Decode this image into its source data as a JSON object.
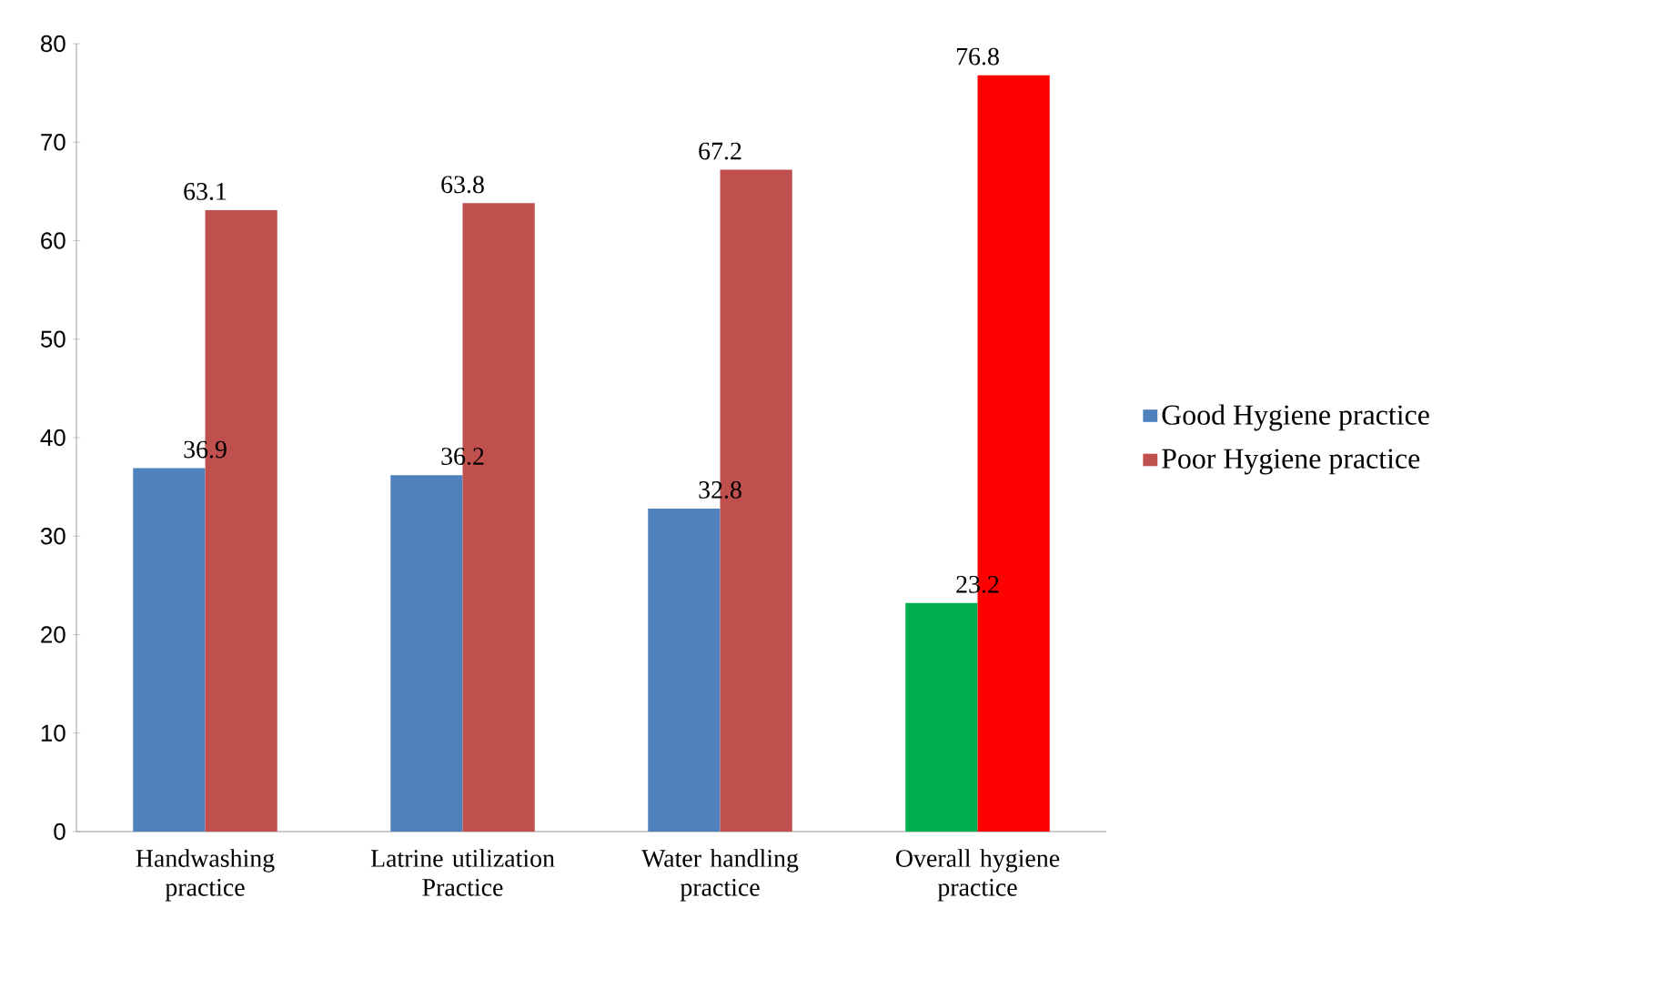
{
  "chart_data": {
    "type": "bar",
    "categories": [
      "Handwashing practice",
      "Latrine utilization Practice",
      "Water handling practice",
      "Overall hygiene practice"
    ],
    "series": [
      {
        "name": "Good Hygiene practice",
        "color": "#4f81bd",
        "colors": [
          "#4f81bd",
          "#4f81bd",
          "#4f81bd",
          "#00b050"
        ],
        "values": [
          36.9,
          36.2,
          32.8,
          23.2
        ]
      },
      {
        "name": "Poor Hygiene practice",
        "color": "#c0504d",
        "colors": [
          "#c0504d",
          "#c0504d",
          "#c0504d",
          "#ff0000"
        ],
        "values": [
          63.1,
          63.8,
          67.2,
          76.8
        ]
      }
    ],
    "ylim": [
      0,
      80
    ],
    "yticks": [
      0,
      10,
      20,
      30,
      40,
      50,
      60,
      70,
      80
    ],
    "data_labels": true,
    "grid": false,
    "legend": "right"
  }
}
